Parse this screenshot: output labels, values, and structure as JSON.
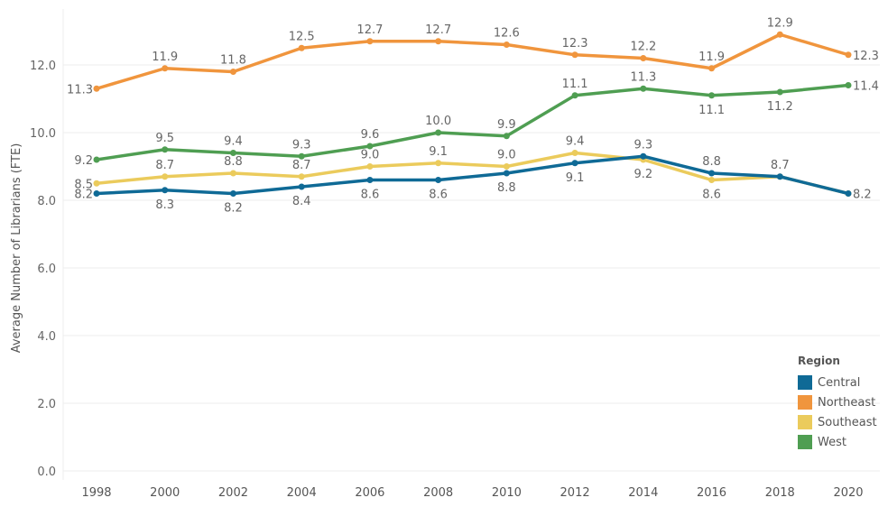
{
  "chart_data": {
    "type": "line",
    "xlabel": "",
    "ylabel": "Average Number of Librarians (FTE)",
    "x": [
      1998,
      2000,
      2002,
      2004,
      2006,
      2008,
      2010,
      2012,
      2014,
      2016,
      2018,
      2020
    ],
    "xtick_labels": [
      "1998",
      "2000",
      "2002",
      "2004",
      "2006",
      "2008",
      "2010",
      "2012",
      "2014",
      "2016",
      "2018",
      "2020"
    ],
    "ylim": [
      0,
      12.9
    ],
    "yticks": [
      "0.0",
      "2.0",
      "4.0",
      "6.0",
      "8.0",
      "10.0",
      "12.0"
    ],
    "grid": true,
    "legend_title": "Region",
    "legend_position": "bottom-right",
    "series": [
      {
        "name": "Central",
        "color": "#0f6a96",
        "values": [
          8.2,
          8.3,
          8.2,
          8.4,
          8.6,
          8.6,
          8.8,
          9.1,
          9.3,
          8.8,
          8.7,
          8.2
        ]
      },
      {
        "name": "Northeast",
        "color": "#f0953d",
        "values": [
          11.3,
          11.9,
          11.8,
          12.5,
          12.7,
          12.7,
          12.6,
          12.3,
          12.2,
          11.9,
          12.9,
          12.3
        ]
      },
      {
        "name": "Southeast",
        "color": "#ebcb5c",
        "values": [
          8.5,
          8.7,
          8.8,
          8.7,
          9.0,
          9.1,
          9.0,
          9.4,
          9.2,
          8.6,
          8.7,
          8.2
        ]
      },
      {
        "name": "West",
        "color": "#4f9e52",
        "values": [
          9.2,
          9.5,
          9.4,
          9.3,
          9.6,
          10.0,
          9.9,
          11.1,
          11.3,
          11.1,
          11.2,
          11.4
        ]
      }
    ]
  }
}
